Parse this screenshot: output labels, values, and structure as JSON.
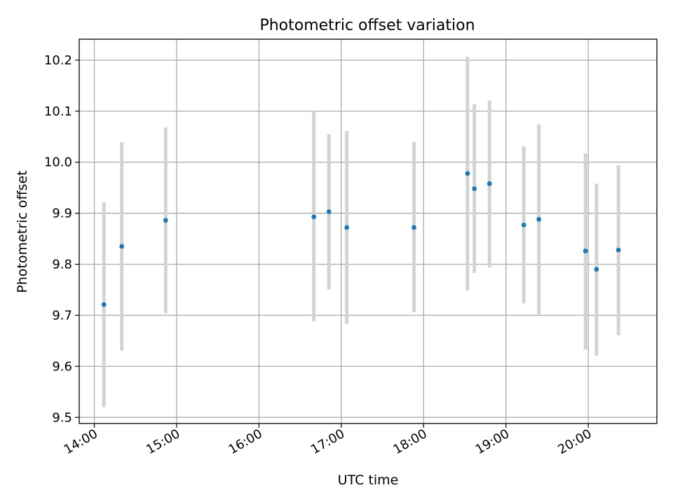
{
  "chart_data": {
    "type": "scatter",
    "title": "Photometric offset variation",
    "xlabel": "UTC time",
    "ylabel": "Photometric offset",
    "x_ticks": [
      "14:00",
      "15:00",
      "16:00",
      "17:00",
      "18:00",
      "19:00",
      "20:00"
    ],
    "y_ticks": [
      "9.5",
      "9.6",
      "9.7",
      "9.8",
      "9.9",
      "10.0",
      "10.1",
      "10.2"
    ],
    "xlim": [
      "13:49",
      "20:50"
    ],
    "ylim": [
      9.488,
      10.241
    ],
    "grid": true,
    "series": [
      {
        "points": [
          {
            "x": "14:07",
            "y": 9.721,
            "yerr_low": 9.52,
            "yerr_high": 9.921
          },
          {
            "x": "14:20",
            "y": 9.835,
            "yerr_low": 9.631,
            "yerr_high": 10.039
          },
          {
            "x": "14:52",
            "y": 9.886,
            "yerr_low": 9.704,
            "yerr_high": 10.068
          },
          {
            "x": "16:40",
            "y": 9.893,
            "yerr_low": 9.688,
            "yerr_high": 10.098
          },
          {
            "x": "16:51",
            "y": 9.903,
            "yerr_low": 9.751,
            "yerr_high": 10.055
          },
          {
            "x": "17:04",
            "y": 9.872,
            "yerr_low": 9.683,
            "yerr_high": 10.061
          },
          {
            "x": "17:53",
            "y": 9.872,
            "yerr_low": 9.706,
            "yerr_high": 10.04
          },
          {
            "x": "18:32",
            "y": 9.978,
            "yerr_low": 9.749,
            "yerr_high": 10.207
          },
          {
            "x": "18:37",
            "y": 9.948,
            "yerr_low": 9.783,
            "yerr_high": 10.114
          },
          {
            "x": "18:48",
            "y": 9.958,
            "yerr_low": 9.794,
            "yerr_high": 10.121
          },
          {
            "x": "19:13",
            "y": 9.877,
            "yerr_low": 9.723,
            "yerr_high": 10.031
          },
          {
            "x": "19:24",
            "y": 9.888,
            "yerr_low": 9.702,
            "yerr_high": 10.074
          },
          {
            "x": "19:58",
            "y": 9.826,
            "yerr_low": 9.633,
            "yerr_high": 10.017
          },
          {
            "x": "20:06",
            "y": 9.79,
            "yerr_low": 9.621,
            "yerr_high": 9.958
          },
          {
            "x": "20:22",
            "y": 9.828,
            "yerr_low": 9.661,
            "yerr_high": 9.994
          }
        ]
      }
    ],
    "colors": {
      "point": "#1f77b4",
      "errorbar": "#d3d3d3",
      "grid": "#b0b0b0",
      "axes": "#000000"
    }
  }
}
